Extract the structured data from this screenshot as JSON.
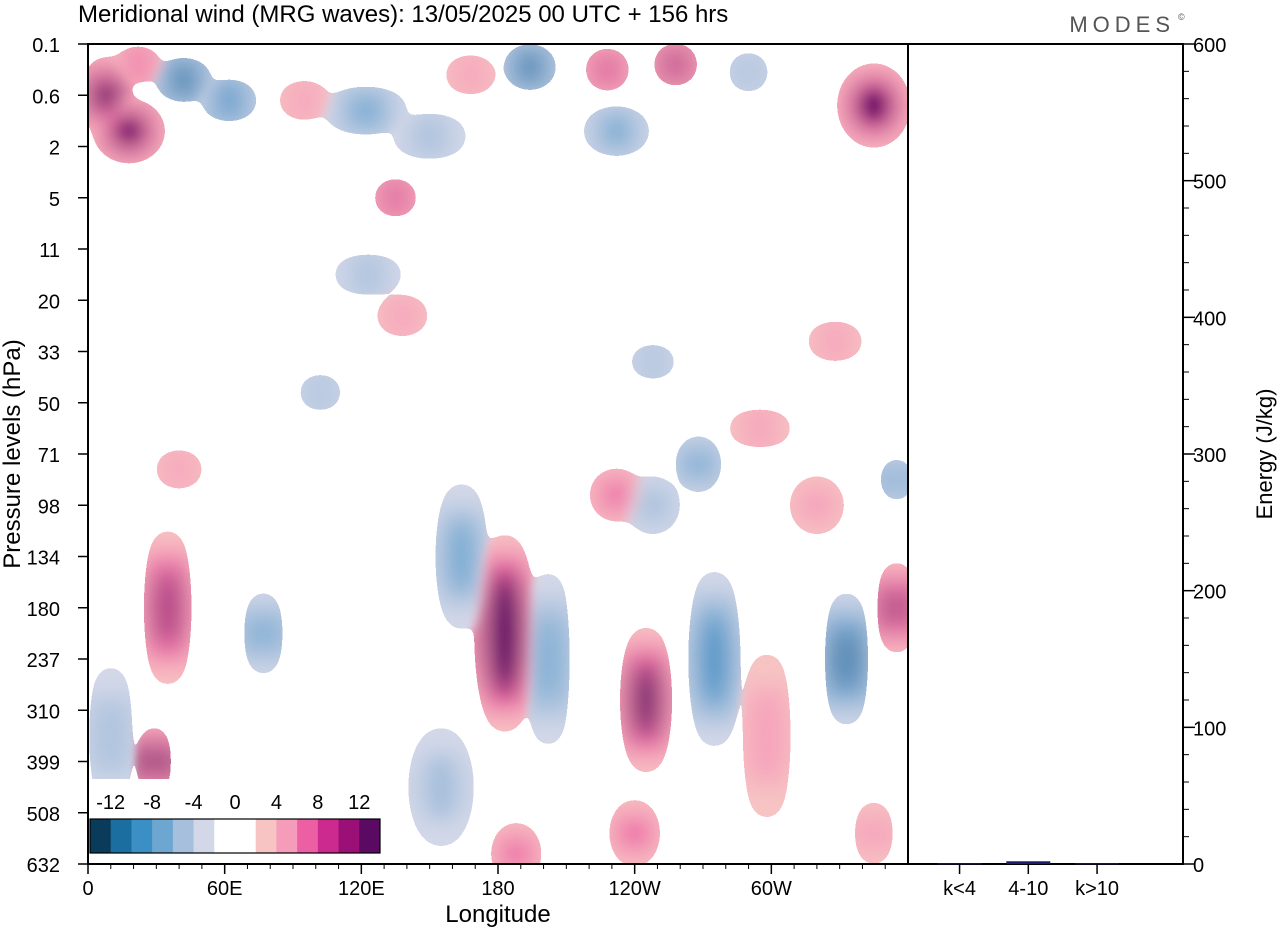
{
  "title": "Meridional wind (MRG waves):  13/05/2025  00 UTC  + 156 hrs",
  "brand": "MODES",
  "brand_mark": "©",
  "chart_data": [
    {
      "type": "heatmap",
      "xlabel": "Longitude",
      "ylabel": "Pressure levels (hPa)",
      "x_ticks": [
        "0",
        "60E",
        "120E",
        "180",
        "120W",
        "60W"
      ],
      "x_tick_degrees": [
        0,
        60,
        120,
        180,
        240,
        300
      ],
      "xlim": [
        0,
        360
      ],
      "y_ticks": [
        "0.1",
        "0.6",
        "2",
        "5",
        "11",
        "20",
        "33",
        "50",
        "71",
        "98",
        "134",
        "180",
        "237",
        "310",
        "399",
        "508",
        "632"
      ],
      "colorbar": {
        "labels": [
          "-12",
          "-8",
          "-4",
          "0",
          "4",
          "8",
          "12"
        ],
        "colors": [
          "#0b3b5a",
          "#1a6fa0",
          "#3a8fc4",
          "#6da7d1",
          "#a5bfdc",
          "#d3d8e8",
          "#ffffff",
          "#ffffff",
          "#f7c3c3",
          "#f59cba",
          "#ec5fa3",
          "#cc2a8e",
          "#9a1077",
          "#5b0a63"
        ]
      },
      "features": [
        {
          "lon": 8,
          "level": 1.0,
          "w": 14,
          "h": 1.2,
          "value": 12
        },
        {
          "lon": 18,
          "level": 1.7,
          "w": 24,
          "h": 0.9,
          "value": 12
        },
        {
          "lon": 22,
          "level": 0.4,
          "w": 14,
          "h": 0.35,
          "value": 6
        },
        {
          "lon": 42,
          "level": 0.7,
          "w": 18,
          "h": 0.5,
          "value": -9
        },
        {
          "lon": 62,
          "level": 1.1,
          "w": 18,
          "h": 0.45,
          "value": -8
        },
        {
          "lon": 95,
          "level": 1.1,
          "w": 16,
          "h": 0.4,
          "value": 4
        },
        {
          "lon": 122,
          "level": 1.3,
          "w": 30,
          "h": 0.55,
          "value": -6
        },
        {
          "lon": 150,
          "level": 1.8,
          "w": 26,
          "h": 0.5,
          "value": -4
        },
        {
          "lon": 168,
          "level": 0.6,
          "w": 16,
          "h": 0.4,
          "value": 4
        },
        {
          "lon": 194,
          "level": 0.45,
          "w": 16,
          "h": 0.55,
          "value": -9
        },
        {
          "lon": 228,
          "level": 0.5,
          "w": 12,
          "h": 0.5,
          "value": 8
        },
        {
          "lon": 258,
          "level": 0.4,
          "w": 12,
          "h": 0.5,
          "value": 9
        },
        {
          "lon": 290,
          "level": 0.55,
          "w": 10,
          "h": 0.45,
          "value": -4
        },
        {
          "lon": 345,
          "level": 1.2,
          "w": 24,
          "h": 1.3,
          "value": 11
        },
        {
          "lon": 232,
          "level": 1.7,
          "w": 22,
          "h": 0.6,
          "value": -5
        },
        {
          "lon": 135,
          "level": 3.0,
          "w": 12,
          "h": 0.4,
          "value": 7
        },
        {
          "lon": 123,
          "level": 4.5,
          "w": 24,
          "h": 0.4,
          "value": -3
        },
        {
          "lon": 138,
          "level": 5.3,
          "w": 16,
          "h": 0.45,
          "value": 4
        },
        {
          "lon": 102,
          "level": 6.8,
          "w": 12,
          "h": 0.35,
          "value": -3
        },
        {
          "lon": 248,
          "level": 6.2,
          "w": 14,
          "h": 0.3,
          "value": -3
        },
        {
          "lon": 328,
          "level": 5.8,
          "w": 18,
          "h": 0.4,
          "value": 4
        },
        {
          "lon": 295,
          "level": 7.5,
          "w": 22,
          "h": 0.35,
          "value": 4
        },
        {
          "lon": 40,
          "level": 8.3,
          "w": 14,
          "h": 0.4,
          "value": 4
        },
        {
          "lon": 35,
          "level": 11.0,
          "w": 12,
          "h": 2.8,
          "value": 9
        },
        {
          "lon": 29,
          "level": 14.0,
          "w": 6,
          "h": 1.2,
          "value": 11
        },
        {
          "lon": 77,
          "level": 11.5,
          "w": 8,
          "h": 1.4,
          "value": -6
        },
        {
          "lon": 164,
          "level": 10.0,
          "w": 14,
          "h": 2.6,
          "value": -6
        },
        {
          "lon": 183,
          "level": 11.5,
          "w": 18,
          "h": 3.6,
          "value": 15
        },
        {
          "lon": 202,
          "level": 12.0,
          "w": 10,
          "h": 3.2,
          "value": -5
        },
        {
          "lon": 232,
          "level": 8.8,
          "w": 16,
          "h": 0.7,
          "value": 5
        },
        {
          "lon": 245,
          "level": 12.8,
          "w": 14,
          "h": 2.6,
          "value": 11
        },
        {
          "lon": 248,
          "level": 9.0,
          "w": 16,
          "h": 0.8,
          "value": -4
        },
        {
          "lon": 275,
          "level": 12.0,
          "w": 14,
          "h": 3.2,
          "value": -7
        },
        {
          "lon": 268,
          "level": 8.2,
          "w": 12,
          "h": 0.8,
          "value": -6
        },
        {
          "lon": 298,
          "level": 13.5,
          "w": 12,
          "h": 3.0,
          "value": 4
        },
        {
          "lon": 320,
          "level": 9.0,
          "w": 16,
          "h": 0.8,
          "value": 4
        },
        {
          "lon": 333,
          "level": 12.0,
          "w": 10,
          "h": 2.4,
          "value": -9
        },
        {
          "lon": 355,
          "level": 11.0,
          "w": 8,
          "h": 1.6,
          "value": 9
        },
        {
          "lon": 355,
          "level": 8.5,
          "w": 6,
          "h": 0.6,
          "value": -6
        },
        {
          "lon": 188,
          "level": 15.8,
          "w": 14,
          "h": 0.9,
          "value": 5
        },
        {
          "lon": 240,
          "level": 15.4,
          "w": 14,
          "h": 1.0,
          "value": 5
        },
        {
          "lon": 345,
          "level": 15.4,
          "w": 8,
          "h": 1.0,
          "value": 4
        },
        {
          "lon": 10,
          "level": 13.5,
          "w": 10,
          "h": 2.5,
          "value": -3
        },
        {
          "lon": 155,
          "level": 14.5,
          "w": 20,
          "h": 2.0,
          "value": -3
        }
      ]
    },
    {
      "type": "bar",
      "categories": [
        "k<4",
        "4-10",
        "k>10"
      ],
      "values": [
        0.5,
        2,
        0.5
      ],
      "ylabel": "Energy (J/kg)",
      "ylim": [
        0,
        600
      ],
      "y_ticks": [
        "0",
        "100",
        "200",
        "300",
        "400",
        "500",
        "600"
      ],
      "bar_color": "#1c1c6b"
    }
  ]
}
